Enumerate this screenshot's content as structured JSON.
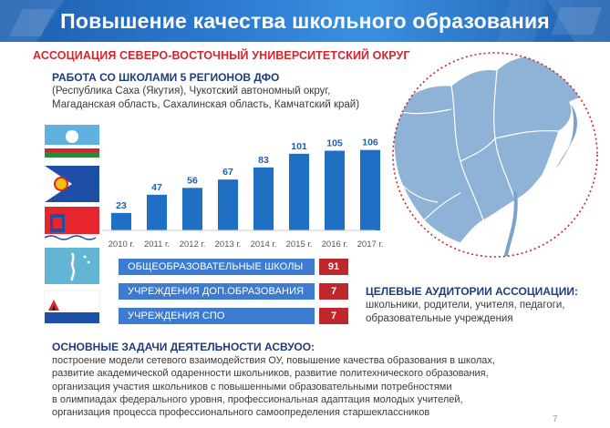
{
  "header": {
    "title": "Повышение качества школьного образования"
  },
  "association": "АССОЦИАЦИЯ СЕВЕРО-ВОСТОЧНЫЙ УНИВЕРСИТЕТСКИЙ ОКРУГ",
  "work": {
    "title": "РАБОТА СО ШКОЛАМИ 5 РЕГИОНОВ ДФО",
    "regions_line1": "(Республика Саха (Якутия), Чукотский автономный округ,",
    "regions_line2": "Магаданская область, Сахалинская область, Камчатский край)"
  },
  "flags": [
    "flag-yakutia-icon",
    "flag-chukotka-icon",
    "flag-magadan-icon",
    "flag-sakhalin-icon",
    "flag-kamchatka-icon"
  ],
  "chart_data": {
    "type": "bar",
    "categories": [
      "2010 г.",
      "2011 г.",
      "2012 г.",
      "2013 г.",
      "2014 г.",
      "2015 г.",
      "2016 г.",
      "2017 г."
    ],
    "values": [
      23,
      47,
      56,
      67,
      83,
      101,
      105,
      106
    ],
    "title": "",
    "xlabel": "",
    "ylabel": "",
    "ylim": [
      0,
      120
    ],
    "color": "#1f6fc4",
    "grid": false
  },
  "categories": [
    {
      "label": "ОБЩЕОБРАЗОВАТЕЛЬНЫЕ ШКОЛЫ",
      "count": "91"
    },
    {
      "label": "УЧРЕЖДЕНИЯ ДОП.ОБРАЗОВАНИЯ",
      "count": "7"
    },
    {
      "label": "УЧРЕЖДЕНИЯ СПО",
      "count": "7"
    }
  ],
  "audience": {
    "title": "ЦЕЛЕВЫЕ АУДИТОРИИ АССОЦИАЦИИ:",
    "line1": "школьники, родители, учителя, педагоги,",
    "line2": "образовательные учреждения"
  },
  "tasks": {
    "title": "ОСНОВНЫЕ ЗАДАЧИ ДЕЯТЕЛЬНОСТИ АСВУОО:",
    "lines": [
      "построение модели сетевого взаимодействия ОУ, повышение качества образования в школах,",
      "развитие академической одаренности школьников, развитие политехнического образования,",
      "организация участия школьников с повышенными образовательными потребностями",
      "в олимпиадах федерального уровня, профессиональная адаптация молодых учителей,",
      "организация процесса профессионального самоопределения старшеклассников"
    ]
  },
  "page_number": "7",
  "colors": {
    "brand_blue": "#1f5fb0",
    "accent_red": "#d6252b",
    "bar_blue": "#1f6fc4",
    "row_blue": "#3d7bd0",
    "count_red": "#c0272d"
  }
}
